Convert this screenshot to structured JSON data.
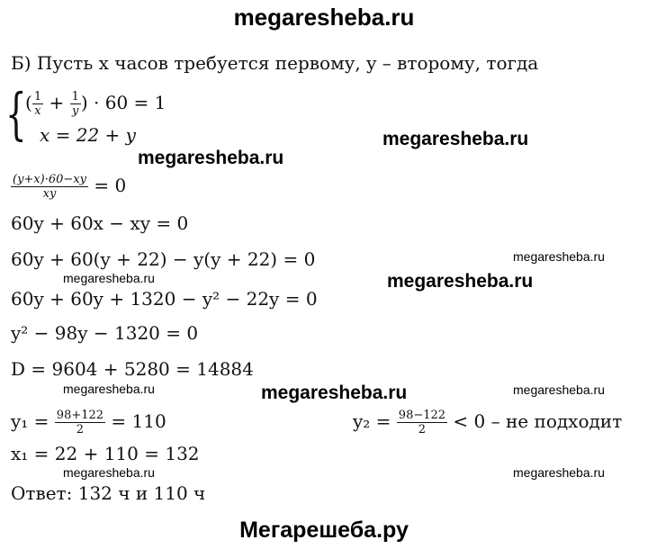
{
  "header": {
    "site": "megaresheba.ru"
  },
  "intro": "Б) Пусть x часов требуется первому, y – второму, тогда",
  "system": {
    "eq1_open": "(",
    "eq1_frac1": {
      "num": "1",
      "den": "x"
    },
    "eq1_plus": "+",
    "eq1_frac2": {
      "num": "1",
      "den": "y"
    },
    "eq1_rest": ") · 60 = 1",
    "eq2": "x = 22 + y"
  },
  "fraction_eq": {
    "num": "(y+x)·60−xy",
    "den": "xy",
    "rest": "= 0"
  },
  "lines": [
    "60y + 60x − xy = 0",
    "60y + 60(y + 22) − y(y + 22) = 0",
    "60y + 60y + 1320 − y² − 22y = 0",
    "y² − 98y − 1320 = 0",
    "D = 9604 + 5280 = 14884"
  ],
  "y1": {
    "lhs": "y₁ =",
    "num": "98+122",
    "den": "2",
    "rest": "= 110"
  },
  "y2": {
    "lhs": "y₂ =",
    "num": "98−122",
    "den": "2",
    "rest": "< 0 – не подходит"
  },
  "x1": "x₁ = 22 + 110 = 132",
  "answer": "Ответ: 132 ч и 110 ч",
  "watermarks": {
    "big": "megaresheba.ru",
    "small": "megaresheba.ru"
  },
  "footer": {
    "site": "Мегарешеба.ру"
  }
}
